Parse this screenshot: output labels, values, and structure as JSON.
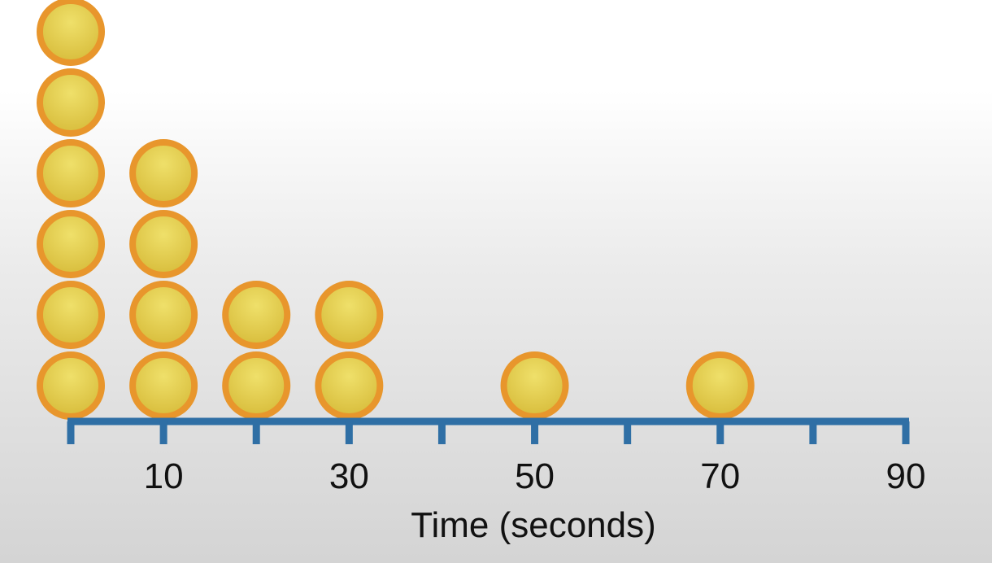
{
  "chart_data": {
    "type": "scatter",
    "subtype": "dot-plot",
    "xlabel": "Time (seconds)",
    "ylabel": "",
    "title": "",
    "xlim": [
      0,
      90
    ],
    "tick_values": [
      0,
      10,
      20,
      30,
      40,
      50,
      60,
      70,
      80,
      90
    ],
    "tick_labels": [
      {
        "value": 10,
        "label": "10"
      },
      {
        "value": 30,
        "label": "30"
      },
      {
        "value": 50,
        "label": "50"
      },
      {
        "value": 70,
        "label": "70"
      },
      {
        "value": 90,
        "label": "90"
      }
    ],
    "x": [
      0,
      10,
      20,
      30,
      50,
      70
    ],
    "counts": [
      6,
      4,
      2,
      2,
      1,
      1
    ],
    "grid": false,
    "colors": {
      "dot_fill": "#e2c93f",
      "dot_outline": "#e8962c",
      "axis": "#2f6fa5",
      "text": "#111111"
    }
  }
}
